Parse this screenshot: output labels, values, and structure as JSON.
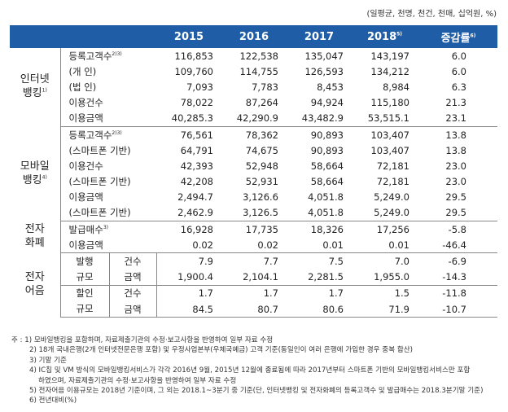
{
  "unit": "(일평균, 천명, 천건, 천매, 십억원, %)",
  "headers": [
    "2015",
    "2016",
    "2017",
    "2018",
    "증감률"
  ],
  "header_notes": {
    "y2018": "5)",
    "rate": "6)"
  },
  "groups": {
    "internet": {
      "label1": "인터넷",
      "label2": "뱅킹",
      "note": "1)"
    },
    "mobile": {
      "label1": "모바일",
      "label2": "뱅킹",
      "note": "4)"
    },
    "emoney": {
      "label1": "전자",
      "label2": "화폐"
    },
    "ebill": {
      "label1": "전자",
      "label2": "어음"
    }
  },
  "rows": {
    "r1": {
      "item": "등록고객수",
      "note": "2)3)",
      "v": [
        "116,853",
        "122,538",
        "135,047",
        "143,197",
        "6.0"
      ]
    },
    "r2": {
      "item": "(개 인)",
      "v": [
        "109,760",
        "114,755",
        "126,593",
        "134,212",
        "6.0"
      ]
    },
    "r3": {
      "item": "(법 인)",
      "v": [
        "7,093",
        "7,783",
        "8,453",
        "8,984",
        "6.3"
      ]
    },
    "r4": {
      "item": "이용건수",
      "v": [
        "78,022",
        "87,264",
        "94,924",
        "115,180",
        "21.3"
      ]
    },
    "r5": {
      "item": "이용금액",
      "v": [
        "40,285.3",
        "42,290.9",
        "43,482.9",
        "53,515.1",
        "23.1"
      ]
    },
    "r6": {
      "item": "등록고객수",
      "note": "2)3)",
      "v": [
        "76,561",
        "78,362",
        "90,893",
        "103,407",
        "13.8"
      ]
    },
    "r7": {
      "item": "(스마트폰 기반)",
      "v": [
        "64,791",
        "74,675",
        "90,893",
        "103,407",
        "13.8"
      ]
    },
    "r8": {
      "item": "이용건수",
      "v": [
        "42,393",
        "52,948",
        "58,664",
        "72,181",
        "23.0"
      ]
    },
    "r9": {
      "item": "(스마트폰 기반)",
      "v": [
        "42,208",
        "52,931",
        "58,664",
        "72,181",
        "23.0"
      ]
    },
    "r10": {
      "item": "이용금액",
      "v": [
        "2,494.7",
        "3,126.6",
        "4,051.8",
        "5,249.0",
        "29.5"
      ]
    },
    "r11": {
      "item": "(스마트폰 기반)",
      "v": [
        "2,462.9",
        "3,126.5",
        "4,051.8",
        "5,249.0",
        "29.5"
      ]
    },
    "r12": {
      "item": "발급매수",
      "note": "3)",
      "v": [
        "16,928",
        "17,735",
        "18,326",
        "17,256",
        "-5.8"
      ]
    },
    "r13": {
      "item": "이용금액",
      "v": [
        "0.02",
        "0.02",
        "0.01",
        "0.01",
        "-46.4"
      ]
    },
    "r14": {
      "sub1": "발행",
      "sub2": "건수",
      "v": [
        "7.9",
        "7.7",
        "7.5",
        "7.0",
        "-6.9"
      ]
    },
    "r15": {
      "sub1": "규모",
      "sub2": "금액",
      "v": [
        "1,900.4",
        "2,104.1",
        "2,281.5",
        "1,955.0",
        "-14.3"
      ]
    },
    "r16": {
      "sub1": "할인",
      "sub2": "건수",
      "v": [
        "1.7",
        "1.7",
        "1.7",
        "1.5",
        "-11.8"
      ]
    },
    "r17": {
      "sub1": "규모",
      "sub2": "금액",
      "v": [
        "84.5",
        "80.7",
        "80.6",
        "71.9",
        "-10.7"
      ]
    }
  },
  "notes": [
    "주 : 1) 모바일뱅킹을 포함하며, 자료제출기관의 수정·보고사항을 반영하여 일부 자료 수정",
    "2) 18개 국내은행(2개 인터넷전문은행 포함) 및 우정사업본부(우체국예금) 고객 기준(동일인이 여러 은행에 가입한 경우 중복 합산)",
    "3) 기말 기준",
    "4) IC칩 및 VM 방식의 모바일뱅킹서비스가 각각 2016년 9월, 2015년 12월에 종료됨에 따라 2017년부터 스마트폰 기반의 모바일뱅킹서비스만 포함",
    "하였으며, 자료제출기관의 수정·보고사항을 반영하여 일부 자료 수정",
    "5) 전자어음 이용규모는 2018년 기준이며, 그 외는 2018.1~3분기 중 기준(단, 인터넷뱅킹 및 전자화폐의 등록고객수 및 발급매수는 2018.3분기말 기준)",
    "6) 전년대비(%)"
  ]
}
